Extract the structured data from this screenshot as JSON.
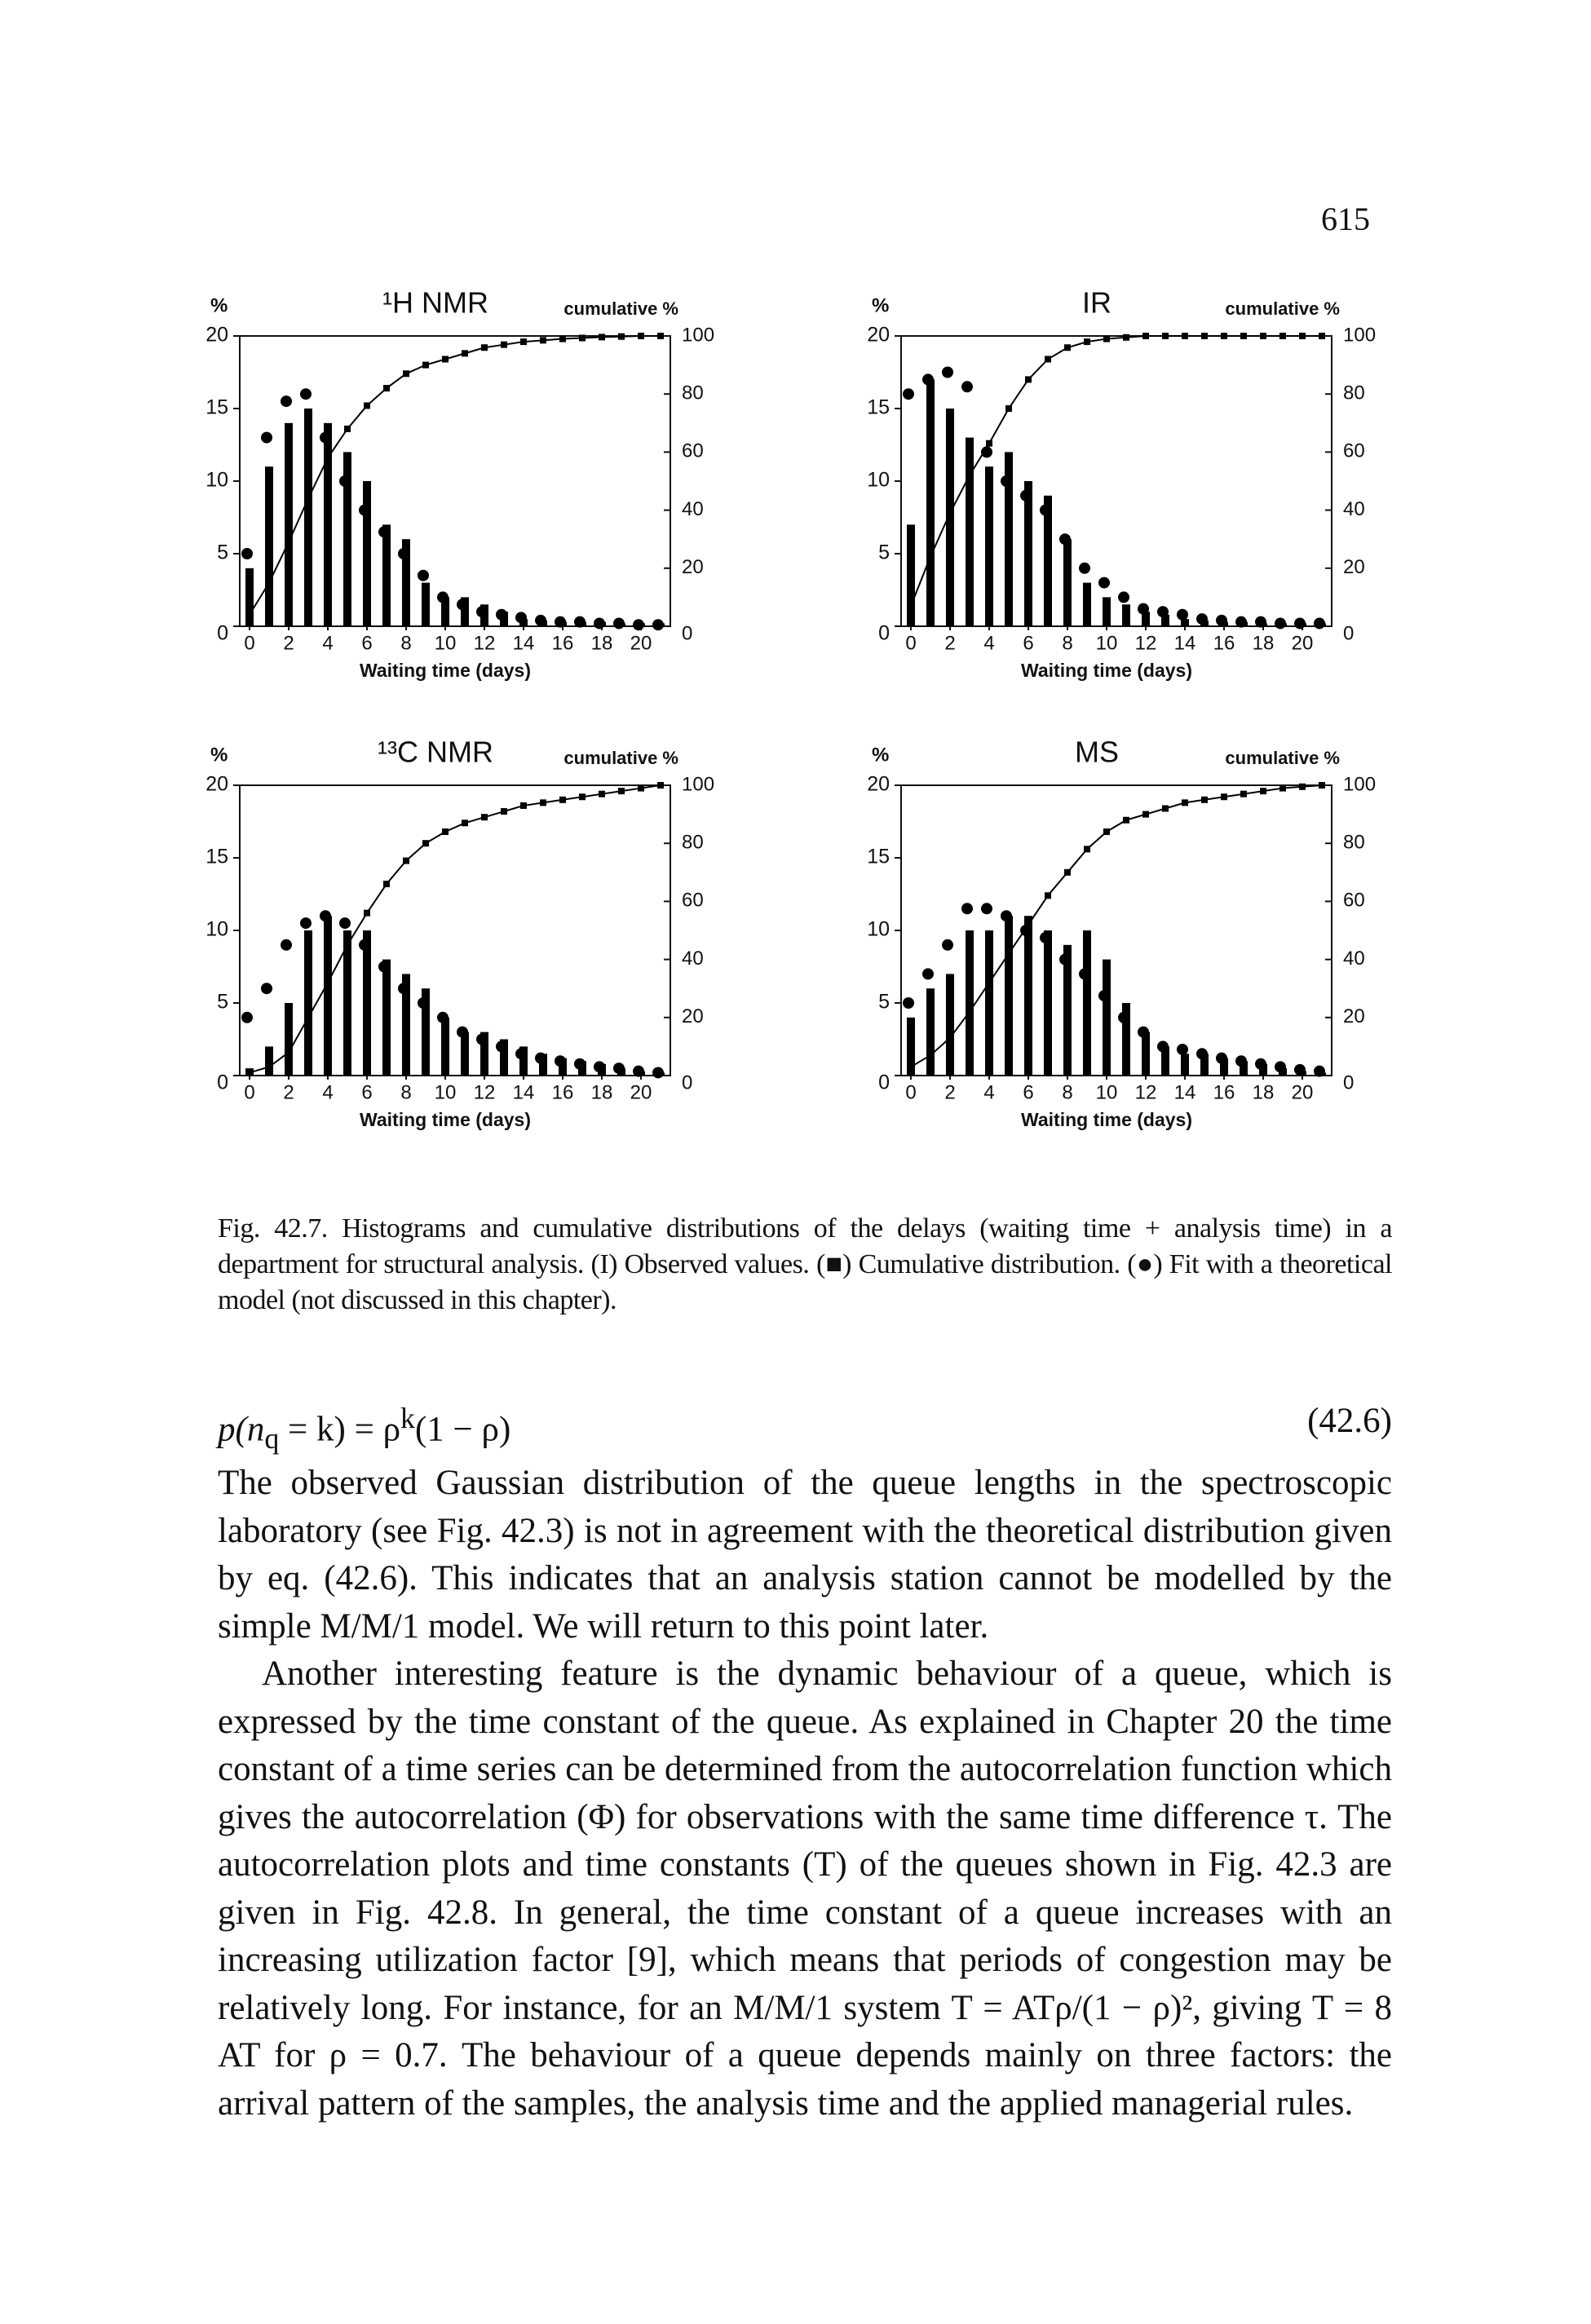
{
  "page_number": "615",
  "chart_data": [
    {
      "type": "bar",
      "title": "¹H NMR",
      "y_label": "%",
      "y2_label": "cumulative %",
      "x_label": "Waiting time (days)",
      "x": [
        0,
        1,
        2,
        3,
        4,
        5,
        6,
        7,
        8,
        9,
        10,
        11,
        12,
        13,
        14,
        15,
        16,
        17,
        18,
        19,
        20,
        21
      ],
      "xlim": [
        -0.5,
        21.5
      ],
      "xticks": [
        0,
        2,
        4,
        6,
        8,
        10,
        12,
        14,
        16,
        18,
        20
      ],
      "ylim": [
        0,
        20
      ],
      "yticks": [
        0,
        5,
        10,
        15,
        20
      ],
      "y2lim": [
        0,
        100
      ],
      "y2ticks": [
        0,
        20,
        40,
        60,
        80,
        100
      ],
      "series": [
        {
          "type": "bar",
          "color": "#000000",
          "values": [
            4,
            11,
            14,
            15,
            14,
            12,
            10,
            7,
            6,
            3,
            2,
            2,
            1.5,
            1,
            0.5,
            0.4,
            0.3,
            0.3,
            0.3,
            0.2,
            0.2,
            0.2
          ]
        },
        {
          "type": "line",
          "axis": "y2",
          "color": "#000000",
          "values": [
            4,
            15,
            29,
            44,
            58,
            68,
            76,
            82,
            87,
            90,
            92,
            94,
            96,
            97,
            98,
            98.5,
            99,
            99.3,
            99.6,
            99.8,
            100,
            100
          ]
        },
        {
          "type": "scatter",
          "color": "#000000",
          "values": [
            5,
            13,
            15.5,
            16,
            13,
            10,
            8,
            6.5,
            5,
            3.5,
            2,
            1.5,
            1,
            0.8,
            0.6,
            0.4,
            0.3,
            0.3,
            0.2,
            0.2,
            0.1,
            0.1
          ]
        }
      ]
    },
    {
      "type": "bar",
      "title": "IR",
      "y_label": "%",
      "y2_label": "cumulative %",
      "x_label": "Waiting time (days)",
      "x": [
        0,
        1,
        2,
        3,
        4,
        5,
        6,
        7,
        8,
        9,
        10,
        11,
        12,
        13,
        14,
        15,
        16,
        17,
        18,
        19,
        20,
        21
      ],
      "xlim": [
        -0.5,
        21.5
      ],
      "xticks": [
        0,
        2,
        4,
        6,
        8,
        10,
        12,
        14,
        16,
        18,
        20
      ],
      "ylim": [
        0,
        20
      ],
      "yticks": [
        0,
        5,
        10,
        15,
        20
      ],
      "y2lim": [
        0,
        100
      ],
      "y2ticks": [
        0,
        20,
        40,
        60,
        80,
        100
      ],
      "series": [
        {
          "type": "bar",
          "color": "#000000",
          "values": [
            7,
            17,
            15,
            13,
            11,
            12,
            10,
            9,
            6,
            3,
            2,
            1.5,
            1,
            0.8,
            0.5,
            0.4,
            0.3,
            0.3,
            0.2,
            0.2,
            0.2,
            0.2
          ]
        },
        {
          "type": "line",
          "axis": "y2",
          "color": "#000000",
          "values": [
            7,
            24,
            39,
            52,
            63,
            75,
            85,
            92,
            96,
            98,
            99,
            99.5,
            100,
            100,
            100,
            100,
            100,
            100,
            100,
            100,
            100,
            100
          ]
        },
        {
          "type": "scatter",
          "color": "#000000",
          "values": [
            16,
            17,
            17.5,
            16.5,
            12,
            10,
            9,
            8,
            6,
            4,
            3,
            2,
            1.2,
            1,
            0.8,
            0.5,
            0.4,
            0.3,
            0.3,
            0.2,
            0.2,
            0.2
          ]
        }
      ]
    },
    {
      "type": "bar",
      "title": "¹³C NMR",
      "y_label": "%",
      "y2_label": "cumulative %",
      "x_label": "Waiting time (days)",
      "x": [
        0,
        1,
        2,
        3,
        4,
        5,
        6,
        7,
        8,
        9,
        10,
        11,
        12,
        13,
        14,
        15,
        16,
        17,
        18,
        19,
        20,
        21
      ],
      "xlim": [
        -0.5,
        21.5
      ],
      "xticks": [
        0,
        2,
        4,
        6,
        8,
        10,
        12,
        14,
        16,
        18,
        20
      ],
      "ylim": [
        0,
        20
      ],
      "yticks": [
        0,
        5,
        10,
        15,
        20
      ],
      "y2lim": [
        0,
        100
      ],
      "y2ticks": [
        0,
        20,
        40,
        60,
        80,
        100
      ],
      "series": [
        {
          "type": "bar",
          "color": "#000000",
          "values": [
            0.5,
            2,
            5,
            10,
            11,
            10,
            10,
            8,
            7,
            6,
            4,
            3,
            3,
            2.5,
            2,
            1.5,
            1.2,
            1,
            0.8,
            0.5,
            0.3,
            0.2
          ]
        },
        {
          "type": "line",
          "axis": "y2",
          "color": "#000000",
          "values": [
            1,
            3,
            8,
            20,
            32,
            45,
            56,
            66,
            74,
            80,
            84,
            87,
            89,
            91,
            93,
            94,
            95,
            96,
            97,
            98,
            99,
            100
          ]
        },
        {
          "type": "scatter",
          "color": "#000000",
          "values": [
            4,
            6,
            9,
            10.5,
            11,
            10.5,
            9,
            7.5,
            6,
            5,
            4,
            3,
            2.5,
            2,
            1.5,
            1.2,
            1,
            0.8,
            0.6,
            0.5,
            0.3,
            0.2
          ]
        }
      ]
    },
    {
      "type": "bar",
      "title": "MS",
      "y_label": "%",
      "y2_label": "cumulative %",
      "x_label": "Waiting time (days)",
      "x": [
        0,
        1,
        2,
        3,
        4,
        5,
        6,
        7,
        8,
        9,
        10,
        11,
        12,
        13,
        14,
        15,
        16,
        17,
        18,
        19,
        20,
        21
      ],
      "xlim": [
        -0.5,
        21.5
      ],
      "xticks": [
        0,
        2,
        4,
        6,
        8,
        10,
        12,
        14,
        16,
        18,
        20
      ],
      "ylim": [
        0,
        20
      ],
      "yticks": [
        0,
        5,
        10,
        15,
        20
      ],
      "y2lim": [
        0,
        100
      ],
      "y2ticks": [
        0,
        20,
        40,
        60,
        80,
        100
      ],
      "series": [
        {
          "type": "bar",
          "color": "#000000",
          "values": [
            4,
            6,
            7,
            10,
            10,
            11,
            11,
            10,
            9,
            10,
            8,
            5,
            3,
            2,
            1.5,
            1.5,
            1.2,
            1,
            0.8,
            0.5,
            0.3,
            0.2
          ]
        },
        {
          "type": "line",
          "axis": "y2",
          "color": "#000000",
          "values": [
            3,
            7,
            13,
            22,
            32,
            42,
            52,
            62,
            70,
            78,
            84,
            88,
            90,
            92,
            94,
            95,
            96,
            97,
            98,
            99,
            99.5,
            100
          ]
        },
        {
          "type": "scatter",
          "color": "#000000",
          "values": [
            5,
            7,
            9,
            11.5,
            11.5,
            11,
            10,
            9.5,
            8,
            7,
            5.5,
            4,
            3,
            2,
            1.8,
            1.5,
            1.2,
            1,
            0.8,
            0.6,
            0.4,
            0.3
          ]
        }
      ]
    }
  ],
  "caption": "Fig. 42.7. Histograms and cumulative distributions of the delays (waiting time + analysis time) in a department for structural analysis. (I) Observed values. (■) Cumulative distribution. (●) Fit with a theoretical model (not discussed in this chapter).",
  "equation": {
    "parts": [
      "p(n",
      "q",
      " = k) = ρ",
      "k",
      "(1 − ρ)"
    ],
    "number": "(42.6)"
  },
  "paragraphs": [
    "The observed Gaussian distribution of the queue lengths in the spectroscopic laboratory (see Fig. 42.3) is not in agreement with the theoretical distribution given by eq. (42.6). This indicates that an analysis station cannot be modelled by the simple M/M/1 model. We will return to this point later.",
    "Another interesting feature is the dynamic behaviour of a queue, which is expressed by the time constant of the queue. As explained in Chapter 20 the time constant of a time series can be determined from the autocorrelation function which gives the autocorrelation (Φ) for observations with the same time difference τ. The autocorrelation plots and time constants (T) of the queues shown in Fig. 42.3 are given in Fig. 42.8. In general, the time constant of a queue increases with an increasing utilization factor [9], which means that periods of congestion may be relatively long. For instance, for an M/M/1 system T = ATρ/(1 − ρ)², giving T = 8 AT for ρ = 0.7. The behaviour of a queue depends mainly on three factors: the arrival pattern of the samples, the analysis time and the applied managerial rules."
  ]
}
